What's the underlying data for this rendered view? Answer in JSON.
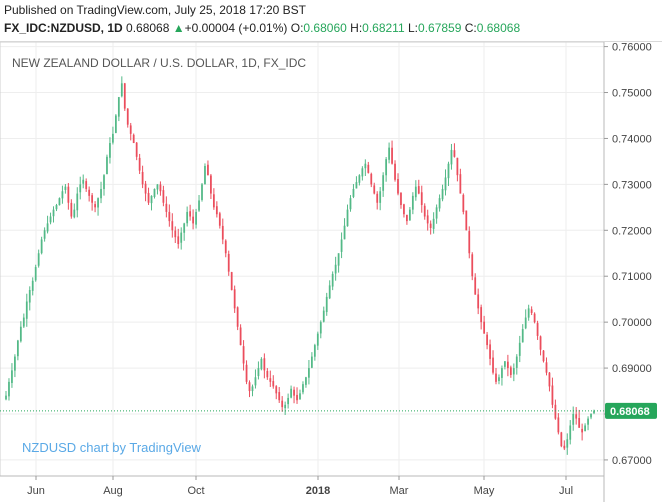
{
  "header": {
    "published": "Published on TradingView.com, July 25, 2018 17:20 BST",
    "symbol": "FX_IDC:NZDUSD, 1D",
    "last": "0.68068",
    "change_arrow": "▲",
    "change": "+0.00004 (+0.01%)",
    "o_label": "O:",
    "o_value": "0.68060",
    "h_label": "H:",
    "h_value": "0.68211",
    "l_label": "L:",
    "l_value": "0.67859",
    "c_label": "C:",
    "c_value": "0.68068"
  },
  "colors": {
    "up": "#53b987",
    "down": "#eb4d5c",
    "grid": "#eeeeee",
    "price_line": "#26a65b",
    "price_tag": "#26a65b",
    "watermark": "#5aa9e6"
  },
  "chart_data": {
    "type": "candlestick",
    "title": "NEW ZEALAND DOLLAR / U.S. DOLLAR, 1D, FX_IDC",
    "watermark": "NZDUSD chart by TradingView",
    "x_tick_labels": [
      "Jun",
      "Aug",
      "Oct",
      "2018",
      "Mar",
      "May",
      "Jul"
    ],
    "y_tick_labels": [
      "0.76000",
      "0.75000",
      "0.74000",
      "0.73000",
      "0.72000",
      "0.71000",
      "0.70000",
      "0.69000",
      "0.68000",
      "0.67000"
    ],
    "ylim": [
      0.6665,
      0.761
    ],
    "last_price": "0.68068",
    "close_path": [
      0.684,
      0.687,
      0.6895,
      0.6925,
      0.696,
      0.699,
      0.701,
      0.7045,
      0.707,
      0.709,
      0.712,
      0.715,
      0.718,
      0.72,
      0.7215,
      0.723,
      0.7245,
      0.7255,
      0.727,
      0.7285,
      0.7295,
      0.726,
      0.723,
      0.7245,
      0.728,
      0.73,
      0.731,
      0.729,
      0.7275,
      0.726,
      0.725,
      0.727,
      0.729,
      0.732,
      0.736,
      0.739,
      0.741,
      0.745,
      0.749,
      0.752,
      0.7465,
      0.743,
      0.741,
      0.739,
      0.736,
      0.733,
      0.73,
      0.728,
      0.726,
      0.7275,
      0.729,
      0.73,
      0.7285,
      0.726,
      0.724,
      0.722,
      0.72,
      0.7185,
      0.717,
      0.7195,
      0.7215,
      0.724,
      0.723,
      0.7215,
      0.724,
      0.7265,
      0.73,
      0.734,
      0.732,
      0.728,
      0.725,
      0.7235,
      0.721,
      0.718,
      0.715,
      0.711,
      0.707,
      0.703,
      0.699,
      0.695,
      0.691,
      0.687,
      0.685,
      0.686,
      0.688,
      0.69,
      0.692,
      0.6895,
      0.688,
      0.687,
      0.686,
      0.6845,
      0.683,
      0.6815,
      0.682,
      0.6835,
      0.6855,
      0.684,
      0.683,
      0.6845,
      0.6865,
      0.688,
      0.69,
      0.6925,
      0.695,
      0.6975,
      0.7,
      0.7025,
      0.7055,
      0.708,
      0.7105,
      0.7125,
      0.715,
      0.718,
      0.721,
      0.7245,
      0.727,
      0.729,
      0.7305,
      0.732,
      0.7335,
      0.7345,
      0.7325,
      0.73,
      0.728,
      0.726,
      0.7285,
      0.732,
      0.7355,
      0.738,
      0.7345,
      0.731,
      0.728,
      0.7255,
      0.7235,
      0.722,
      0.7245,
      0.7275,
      0.7295,
      0.728,
      0.7255,
      0.723,
      0.7215,
      0.7205,
      0.7225,
      0.725,
      0.727,
      0.729,
      0.7315,
      0.7345,
      0.7375,
      0.736,
      0.732,
      0.728,
      0.724,
      0.72,
      0.715,
      0.71,
      0.706,
      0.703,
      0.7,
      0.6975,
      0.695,
      0.692,
      0.689,
      0.687,
      0.688,
      0.69,
      0.6915,
      0.69,
      0.6885,
      0.69,
      0.6925,
      0.6955,
      0.6985,
      0.701,
      0.703,
      0.702,
      0.7,
      0.697,
      0.694,
      0.6915,
      0.689,
      0.686,
      0.682,
      0.679,
      0.676,
      0.673,
      0.6725,
      0.6745,
      0.6775,
      0.68,
      0.679,
      0.677,
      0.676,
      0.6775,
      0.679,
      0.68,
      0.6807
    ]
  }
}
